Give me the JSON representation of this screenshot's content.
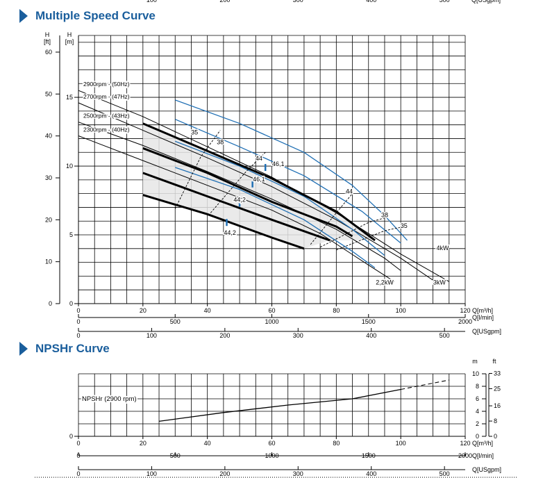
{
  "top_cut_axis": {
    "ticks": [
      "100",
      "200",
      "300",
      "400",
      "500"
    ],
    "unit": "Q[USgpm]"
  },
  "sections": {
    "speed_title": "Multiple Speed Curve",
    "npsh_title": "NPSHr Curve"
  },
  "chart_data": [
    {
      "type": "line",
      "title": "Multiple Speed Curve",
      "xlabel": "Q[m³/h]",
      "ylabel": "H [m]",
      "ylabel_ft": "H [ft]",
      "xlim": [
        0,
        120
      ],
      "ylim": [
        0,
        19.5
      ],
      "y_unit_label": "[m]",
      "y_ft_unit_label": "[ft]",
      "y_label_letter": "H",
      "x_ticks": [
        "0",
        "20",
        "40",
        "60",
        "80",
        "100",
        "120"
      ],
      "y_ticks_m": [
        "5",
        "10",
        "15"
      ],
      "y_ticks_ft": [
        "0",
        "10",
        "20",
        "30",
        "40",
        "50",
        "60"
      ],
      "x_unit_m3h": "Q[m³/h]",
      "secondary_axes": [
        {
          "label": "Q[l/min]",
          "ticks": [
            "0",
            "500",
            "1000",
            "1500",
            "2000"
          ]
        },
        {
          "label": "Q[USgpm]",
          "ticks": [
            "0",
            "100",
            "200",
            "300",
            "400",
            "500"
          ]
        }
      ],
      "speed_curves": [
        {
          "name": "2900rpm - (50Hz)",
          "points": [
            [
              0,
              15.5
            ],
            [
              20,
              13.6
            ],
            [
              40,
              11.4
            ],
            [
              60,
              9.2
            ],
            [
              80,
              6.6
            ],
            [
              100,
              3.6
            ],
            [
              115,
              1.6
            ]
          ]
        },
        {
          "name": "2700rpm - (47Hz)",
          "points": [
            [
              0,
              14.6
            ],
            [
              20,
              12.6
            ],
            [
              40,
              10.6
            ],
            [
              60,
              8.5
            ],
            [
              80,
              6.1
            ],
            [
              100,
              3.3
            ],
            [
              110,
              1.7
            ]
          ]
        },
        {
          "name": "2500rpm - (43Hz)",
          "points": [
            [
              0,
              13.2
            ],
            [
              20,
              11.5
            ],
            [
              40,
              9.6
            ],
            [
              60,
              7.6
            ],
            [
              80,
              5.4
            ],
            [
              95,
              3.3
            ],
            [
              100,
              2.4
            ]
          ]
        },
        {
          "name": "2300rpm - (40Hz)",
          "points": [
            [
              0,
              12.2
            ],
            [
              20,
              10.4
            ],
            [
              40,
              8.6
            ],
            [
              60,
              6.8
            ],
            [
              75,
              5.1
            ],
            [
              90,
              2.8
            ],
            [
              98,
              1.6
            ]
          ]
        }
      ],
      "operating_segments": [
        {
          "points": [
            [
              20,
              13.1
            ],
            [
              40,
              11.1
            ],
            [
              60,
              9.1
            ],
            [
              80,
              6.7
            ],
            [
              92,
              4.6
            ]
          ]
        },
        {
          "points": [
            [
              20,
              11.3
            ],
            [
              40,
              9.5
            ],
            [
              60,
              7.4
            ],
            [
              80,
              5.6
            ],
            [
              85,
              4.9
            ]
          ]
        },
        {
          "points": [
            [
              20,
              9.5
            ],
            [
              40,
              7.8
            ],
            [
              60,
              6.1
            ],
            [
              78,
              4.6
            ]
          ]
        },
        {
          "points": [
            [
              20,
              7.9
            ],
            [
              40,
              6.5
            ],
            [
              60,
              4.8
            ],
            [
              70,
              4.0
            ]
          ]
        }
      ],
      "efficiency_curves": [
        {
          "points": [
            [
              30,
              14.8
            ],
            [
              50,
              13.1
            ],
            [
              70,
              11.0
            ],
            [
              85,
              8.6
            ],
            [
              95,
              6.4
            ],
            [
              102,
              4.6
            ]
          ]
        },
        {
          "points": [
            [
              30,
              13.4
            ],
            [
              50,
              11.4
            ],
            [
              70,
              9.3
            ],
            [
              88,
              6.7
            ],
            [
              100,
              4.4
            ]
          ]
        },
        {
          "points": [
            [
              30,
              11.8
            ],
            [
              50,
              10.0
            ],
            [
              70,
              7.8
            ],
            [
              85,
              5.4
            ],
            [
              95,
              3.5
            ]
          ]
        },
        {
          "points": [
            [
              30,
              9.9
            ],
            [
              50,
              8.3
            ],
            [
              70,
              6.1
            ],
            [
              85,
              3.8
            ],
            [
              92,
              2.6
            ]
          ]
        }
      ],
      "efficiency_ticks": [
        {
          "label": "35",
          "at": [
            36,
            12.3
          ]
        },
        {
          "label": "38",
          "at": [
            44,
            11.6
          ]
        },
        {
          "label": "44",
          "at": [
            56,
            10.4
          ]
        },
        {
          "label": "46,1",
          "at": [
            62,
            10.0
          ]
        },
        {
          "label": "46,1",
          "at": [
            56,
            8.9
          ]
        },
        {
          "label": "44,2",
          "at": [
            50,
            7.4
          ]
        },
        {
          "label": "44,2",
          "at": [
            47,
            5.0
          ]
        },
        {
          "label": "44",
          "at": [
            84,
            8.0
          ]
        },
        {
          "label": "38",
          "at": [
            95,
            6.3
          ]
        },
        {
          "label": "35",
          "at": [
            101,
            5.5
          ]
        }
      ],
      "power_labels": [
        {
          "label": "2,2kW",
          "at": [
            95,
            1.4
          ]
        },
        {
          "label": "3kW",
          "at": [
            112,
            1.4
          ]
        },
        {
          "label": "4kW",
          "at": [
            113,
            3.9
          ]
        }
      ],
      "bep_points": [
        [
          58,
          9.9
        ],
        [
          54,
          8.7
        ],
        [
          50,
          7.3
        ],
        [
          46,
          5.9
        ]
      ]
    },
    {
      "type": "line",
      "title": "NPSHr Curve",
      "xlabel": "Q[m³/h]",
      "ylabel": "m",
      "ylabel_ft": "ft",
      "xlim": [
        0,
        120
      ],
      "ylim": [
        0,
        10
      ],
      "x_ticks": [
        "0",
        "20",
        "40",
        "60",
        "80",
        "100",
        "120"
      ],
      "y_ticks_m": [
        "0",
        "2",
        "4",
        "6",
        "8",
        "10"
      ],
      "y_ticks_ft": [
        "0",
        "8",
        "16",
        "25",
        "33"
      ],
      "y_unit_m": "m",
      "y_unit_ft": "ft",
      "x_unit_m3h": "Q[m³/h]",
      "secondary_axes": [
        {
          "label": "Q[l/min]",
          "ticks": [
            "0",
            "500",
            "1000",
            "1500",
            "2000"
          ]
        },
        {
          "label": "Q[USgpm]",
          "ticks": [
            "0",
            "100",
            "200",
            "300",
            "400",
            "500"
          ]
        }
      ],
      "series": [
        {
          "name": "NPSHr (2900 rpm)",
          "solid": [
            [
              25,
              2.4
            ],
            [
              45,
              3.8
            ],
            [
              65,
              5.0
            ],
            [
              85,
              6.0
            ],
            [
              100,
              7.5
            ]
          ],
          "dashed": [
            [
              100,
              7.5
            ],
            [
              115,
              9.0
            ]
          ]
        }
      ]
    }
  ]
}
